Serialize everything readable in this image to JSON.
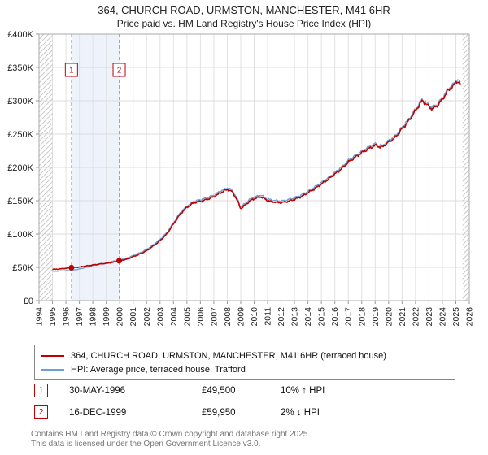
{
  "title": {
    "line1": "364, CHURCH ROAD, URMSTON, MANCHESTER, M41 6HR",
    "line2": "Price paid vs. HM Land Registry's House Price Index (HPI)"
  },
  "chart_data": {
    "type": "line",
    "title": "364, CHURCH ROAD, URMSTON, MANCHESTER, M41 6HR — Price paid vs. HM Land Registry's House Price Index (HPI)",
    "xlabel": "",
    "ylabel": "",
    "grid": true,
    "legend_position": "bottom",
    "x_range": [
      1994,
      2026
    ],
    "y_range": [
      0,
      400000
    ],
    "y_ticks": [
      {
        "v": 0,
        "label": "£0"
      },
      {
        "v": 50000,
        "label": "£50K"
      },
      {
        "v": 100000,
        "label": "£100K"
      },
      {
        "v": 150000,
        "label": "£150K"
      },
      {
        "v": 200000,
        "label": "£200K"
      },
      {
        "v": 250000,
        "label": "£250K"
      },
      {
        "v": 300000,
        "label": "£300K"
      },
      {
        "v": 350000,
        "label": "£350K"
      },
      {
        "v": 400000,
        "label": "£400K"
      }
    ],
    "x_ticks": [
      1994,
      1995,
      1996,
      1997,
      1998,
      1999,
      2000,
      2001,
      2002,
      2003,
      2004,
      2005,
      2006,
      2007,
      2008,
      2009,
      2010,
      2011,
      2012,
      2013,
      2014,
      2015,
      2016,
      2017,
      2018,
      2019,
      2020,
      2021,
      2022,
      2023,
      2024,
      2025,
      2026
    ],
    "hatched_regions": [
      [
        1994,
        1995
      ],
      [
        2025.5,
        2026
      ]
    ],
    "highlight_band": [
      1996.41,
      1999.96
    ],
    "band_color": "#edf2fb",
    "series": [
      {
        "name": "364, CHURCH ROAD, URMSTON, MANCHESTER, M41 6HR (terraced house)",
        "color": "#c00000",
        "width": 1.6,
        "points": [
          [
            1995.0,
            47000
          ],
          [
            1995.5,
            47500
          ],
          [
            1996.0,
            48500
          ],
          [
            1996.41,
            49500
          ],
          [
            1997.0,
            50500
          ],
          [
            1997.5,
            52000
          ],
          [
            1998.0,
            53500
          ],
          [
            1998.5,
            55000
          ],
          [
            1999.0,
            56000
          ],
          [
            1999.5,
            57500
          ],
          [
            1999.96,
            59950
          ],
          [
            2000.5,
            62000
          ],
          [
            2001.0,
            66000
          ],
          [
            2001.5,
            70000
          ],
          [
            2002.0,
            75000
          ],
          [
            2002.5,
            82000
          ],
          [
            2003.0,
            90000
          ],
          [
            2003.5,
            100000
          ],
          [
            2004.0,
            115000
          ],
          [
            2004.5,
            130000
          ],
          [
            2005.0,
            140000
          ],
          [
            2005.5,
            147000
          ],
          [
            2006.0,
            149000
          ],
          [
            2006.5,
            152000
          ],
          [
            2007.0,
            156000
          ],
          [
            2007.5,
            162000
          ],
          [
            2008.0,
            167000
          ],
          [
            2008.4,
            163000
          ],
          [
            2008.8,
            148000
          ],
          [
            2009.0,
            138000
          ],
          [
            2009.3,
            143000
          ],
          [
            2009.7,
            150000
          ],
          [
            2010.0,
            153000
          ],
          [
            2010.5,
            156000
          ],
          [
            2011.0,
            150000
          ],
          [
            2011.5,
            148000
          ],
          [
            2012.0,
            147000
          ],
          [
            2012.5,
            149000
          ],
          [
            2013.0,
            152000
          ],
          [
            2013.5,
            156000
          ],
          [
            2014.0,
            162000
          ],
          [
            2014.5,
            168000
          ],
          [
            2015.0,
            175000
          ],
          [
            2015.5,
            182000
          ],
          [
            2016.0,
            190000
          ],
          [
            2016.5,
            198000
          ],
          [
            2017.0,
            208000
          ],
          [
            2017.5,
            215000
          ],
          [
            2018.0,
            222000
          ],
          [
            2018.5,
            228000
          ],
          [
            2019.0,
            233000
          ],
          [
            2019.5,
            230000
          ],
          [
            2020.0,
            238000
          ],
          [
            2020.5,
            245000
          ],
          [
            2021.0,
            258000
          ],
          [
            2021.5,
            270000
          ],
          [
            2022.0,
            285000
          ],
          [
            2022.5,
            300000
          ],
          [
            2022.8,
            295000
          ],
          [
            2023.2,
            288000
          ],
          [
            2023.6,
            292000
          ],
          [
            2024.0,
            302000
          ],
          [
            2024.4,
            315000
          ],
          [
            2024.8,
            322000
          ],
          [
            2025.1,
            330000
          ],
          [
            2025.4,
            323000
          ]
        ]
      },
      {
        "name": "HPI: Average price, terraced house, Trafford",
        "color": "#6e9fd4",
        "width": 1.3,
        "points": [
          [
            1995.0,
            44000
          ],
          [
            1995.5,
            44500
          ],
          [
            1996.0,
            45000
          ],
          [
            1996.41,
            45500
          ],
          [
            1997.0,
            47500
          ],
          [
            1997.5,
            50000
          ],
          [
            1998.0,
            52500
          ],
          [
            1998.5,
            54500
          ],
          [
            1999.0,
            56500
          ],
          [
            1999.5,
            59000
          ],
          [
            1999.96,
            61200
          ],
          [
            2000.5,
            63800
          ],
          [
            2001.0,
            67800
          ],
          [
            2001.5,
            71800
          ],
          [
            2002.0,
            77000
          ],
          [
            2002.5,
            84000
          ],
          [
            2003.0,
            92000
          ],
          [
            2003.5,
            102000
          ],
          [
            2004.0,
            117000
          ],
          [
            2004.5,
            132000
          ],
          [
            2005.0,
            142000
          ],
          [
            2005.5,
            149000
          ],
          [
            2006.0,
            151500
          ],
          [
            2006.5,
            154500
          ],
          [
            2007.0,
            158500
          ],
          [
            2007.5,
            164500
          ],
          [
            2008.0,
            169500
          ],
          [
            2008.4,
            165500
          ],
          [
            2008.8,
            150500
          ],
          [
            2009.0,
            140500
          ],
          [
            2009.3,
            145500
          ],
          [
            2009.7,
            152500
          ],
          [
            2010.0,
            155500
          ],
          [
            2010.5,
            158500
          ],
          [
            2011.0,
            152500
          ],
          [
            2011.5,
            150500
          ],
          [
            2012.0,
            149500
          ],
          [
            2012.5,
            151500
          ],
          [
            2013.0,
            154500
          ],
          [
            2013.5,
            158500
          ],
          [
            2014.0,
            164500
          ],
          [
            2014.5,
            170500
          ],
          [
            2015.0,
            177500
          ],
          [
            2015.5,
            184500
          ],
          [
            2016.0,
            192500
          ],
          [
            2016.5,
            200500
          ],
          [
            2017.0,
            210500
          ],
          [
            2017.5,
            217500
          ],
          [
            2018.0,
            224500
          ],
          [
            2018.5,
            230500
          ],
          [
            2019.0,
            235500
          ],
          [
            2019.5,
            232500
          ],
          [
            2020.0,
            240500
          ],
          [
            2020.5,
            247500
          ],
          [
            2021.0,
            260500
          ],
          [
            2021.5,
            272500
          ],
          [
            2022.0,
            287500
          ],
          [
            2022.5,
            302500
          ],
          [
            2022.8,
            297500
          ],
          [
            2023.2,
            290500
          ],
          [
            2023.6,
            294500
          ],
          [
            2024.0,
            304500
          ],
          [
            2024.4,
            317500
          ],
          [
            2024.8,
            324500
          ],
          [
            2025.1,
            332500
          ],
          [
            2025.4,
            325500
          ]
        ]
      }
    ],
    "markers": [
      {
        "n": "1",
        "x": 1996.41,
        "y": 49500
      },
      {
        "n": "2",
        "x": 1999.96,
        "y": 59950
      }
    ],
    "marker_color": "#c00000",
    "dashed_line_color": "#e38a8a"
  },
  "legend": {
    "items": [
      {
        "label": "364, CHURCH ROAD, URMSTON, MANCHESTER, M41 6HR (terraced house)",
        "color": "#c00000"
      },
      {
        "label": "HPI: Average price, terraced house, Trafford",
        "color": "#6e9fd4"
      }
    ]
  },
  "transactions": [
    {
      "n": "1",
      "date": "30-MAY-1996",
      "price": "£49,500",
      "hpi": "10% ↑ HPI"
    },
    {
      "n": "2",
      "date": "16-DEC-1999",
      "price": "£59,950",
      "hpi": "2% ↓ HPI"
    }
  ],
  "footer": {
    "line1": "Contains HM Land Registry data © Crown copyright and database right 2025.",
    "line2": "This data is licensed under the Open Government Licence v3.0."
  }
}
